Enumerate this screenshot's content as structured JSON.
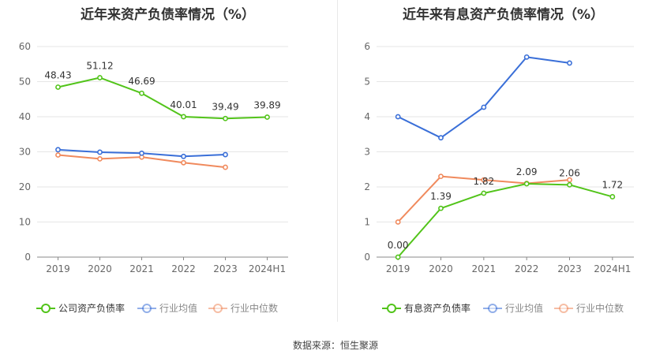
{
  "source_text": "数据来源：恒生聚源",
  "chart_data": [
    {
      "type": "line",
      "title": "近年来资产负债率情况（%）",
      "categories": [
        "2019",
        "2020",
        "2021",
        "2022",
        "2023",
        "2024H1"
      ],
      "ylim": [
        0,
        60
      ],
      "yticks": [
        0,
        10,
        20,
        30,
        40,
        50,
        60
      ],
      "grid": true,
      "legend_position": "bottom",
      "series": [
        {
          "name": "公司资产负债率",
          "color": "#52c41a",
          "values": [
            48.43,
            51.12,
            46.69,
            40.01,
            39.49,
            39.89
          ],
          "labels": [
            "48.43",
            "51.12",
            "46.69",
            "40.01",
            "39.49",
            "39.89"
          ]
        },
        {
          "name": "行业均值",
          "color": "#3a6fd8",
          "values": [
            30.6,
            29.9,
            29.6,
            28.7,
            29.2,
            null
          ]
        },
        {
          "name": "行业中位数",
          "color": "#f08a5d",
          "values": [
            29.1,
            28.0,
            28.5,
            26.9,
            25.6,
            null
          ]
        }
      ]
    },
    {
      "type": "line",
      "title": "近年来有息资产负债率情况（%）",
      "categories": [
        "2019",
        "2020",
        "2021",
        "2022",
        "2023",
        "2024H1"
      ],
      "ylim": [
        0,
        6
      ],
      "yticks": [
        0,
        1,
        2,
        3,
        4,
        5,
        6
      ],
      "grid": true,
      "legend_position": "bottom",
      "series": [
        {
          "name": "有息资产负债率",
          "color": "#52c41a",
          "values": [
            0.0,
            1.39,
            1.82,
            2.09,
            2.06,
            1.72
          ],
          "labels": [
            "0.00",
            "1.39",
            "1.82",
            "2.09",
            "2.06",
            "1.72"
          ]
        },
        {
          "name": "行业均值",
          "color": "#3a6fd8",
          "values": [
            4.0,
            3.4,
            4.27,
            5.7,
            5.53,
            null
          ]
        },
        {
          "name": "行业中位数",
          "color": "#f08a5d",
          "values": [
            1.0,
            2.3,
            2.2,
            2.1,
            2.2,
            null
          ]
        }
      ]
    }
  ]
}
